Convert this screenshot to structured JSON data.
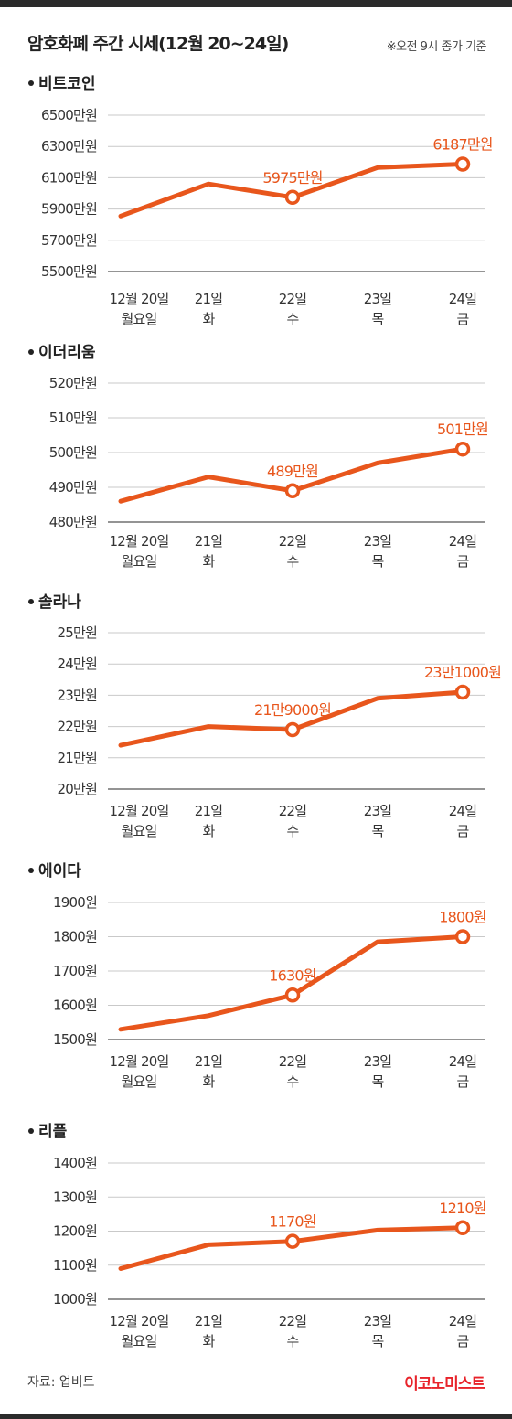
{
  "header": {
    "title": "암호화폐 주간 시세(12월 20~24일)",
    "note": "※오전 9시 종가 기준"
  },
  "footer": {
    "source": "자료: 업비트",
    "brand": "이코노미스트"
  },
  "colors": {
    "line": "#e8561c",
    "brand": "#e8232a"
  },
  "chart_data": [
    {
      "type": "line",
      "title": "비트코인",
      "categories": [
        [
          "12월 20일",
          "월요일"
        ],
        [
          "21일",
          "화"
        ],
        [
          "22일",
          "수"
        ],
        [
          "23일",
          "목"
        ],
        [
          "24일",
          "금"
        ]
      ],
      "values": [
        5855,
        6060,
        5975,
        6165,
        6187
      ],
      "ylim": [
        5500,
        6500
      ],
      "yticks": [
        5500,
        5700,
        5900,
        6100,
        6300,
        6500
      ],
      "ytick_labels": [
        "5500만원",
        "5700만원",
        "5900만원",
        "6100만원",
        "6300만원",
        "6500만원"
      ],
      "annotations": [
        {
          "index": 2,
          "label": "5975만원"
        },
        {
          "index": 4,
          "label": "6187만원"
        }
      ]
    },
    {
      "type": "line",
      "title": "이더리움",
      "categories": [
        [
          "12월 20일",
          "월요일"
        ],
        [
          "21일",
          "화"
        ],
        [
          "22일",
          "수"
        ],
        [
          "23일",
          "목"
        ],
        [
          "24일",
          "금"
        ]
      ],
      "values": [
        486,
        493,
        489,
        497,
        501
      ],
      "ylim": [
        480,
        520
      ],
      "yticks": [
        480,
        490,
        500,
        510,
        520
      ],
      "ytick_labels": [
        "480만원",
        "490만원",
        "500만원",
        "510만원",
        "520만원"
      ],
      "annotations": [
        {
          "index": 2,
          "label": "489만원"
        },
        {
          "index": 4,
          "label": "501만원"
        }
      ]
    },
    {
      "type": "line",
      "title": "솔라나",
      "categories": [
        [
          "12월 20일",
          "월요일"
        ],
        [
          "21일",
          "화"
        ],
        [
          "22일",
          "수"
        ],
        [
          "23일",
          "목"
        ],
        [
          "24일",
          "금"
        ]
      ],
      "values": [
        21.4,
        22.0,
        21.9,
        22.9,
        23.1
      ],
      "ylim": [
        20,
        25
      ],
      "yticks": [
        20,
        21,
        22,
        23,
        24,
        25
      ],
      "ytick_labels": [
        "20만원",
        "21만원",
        "22만원",
        "23만원",
        "24만원",
        "25만원"
      ],
      "annotations": [
        {
          "index": 2,
          "label": "21만9000원"
        },
        {
          "index": 4,
          "label": "23만1000원"
        }
      ]
    },
    {
      "type": "line",
      "title": "에이다",
      "categories": [
        [
          "12월 20일",
          "월요일"
        ],
        [
          "21일",
          "화"
        ],
        [
          "22일",
          "수"
        ],
        [
          "23일",
          "목"
        ],
        [
          "24일",
          "금"
        ]
      ],
      "values": [
        1530,
        1570,
        1630,
        1785,
        1800
      ],
      "ylim": [
        1500,
        1900
      ],
      "yticks": [
        1500,
        1600,
        1700,
        1800,
        1900
      ],
      "ytick_labels": [
        "1500원",
        "1600원",
        "1700원",
        "1800원",
        "1900원"
      ],
      "annotations": [
        {
          "index": 2,
          "label": "1630원"
        },
        {
          "index": 4,
          "label": "1800원"
        }
      ]
    },
    {
      "type": "line",
      "title": "리플",
      "categories": [
        [
          "12월 20일",
          "월요일"
        ],
        [
          "21일",
          "화"
        ],
        [
          "22일",
          "수"
        ],
        [
          "23일",
          "목"
        ],
        [
          "24일",
          "금"
        ]
      ],
      "values": [
        1090,
        1160,
        1170,
        1203,
        1210
      ],
      "ylim": [
        1000,
        1400
      ],
      "yticks": [
        1000,
        1100,
        1200,
        1300,
        1400
      ],
      "ytick_labels": [
        "1000원",
        "1100원",
        "1200원",
        "1300원",
        "1400원"
      ],
      "annotations": [
        {
          "index": 2,
          "label": "1170원"
        },
        {
          "index": 4,
          "label": "1210원"
        }
      ]
    }
  ]
}
